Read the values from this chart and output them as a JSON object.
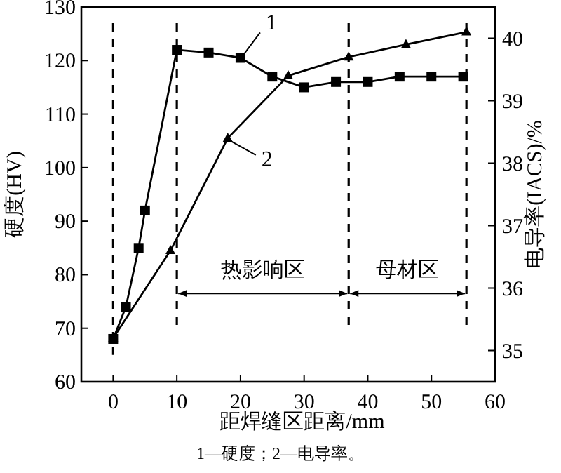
{
  "chart_data": {
    "type": "line",
    "xlabel": "距焊缝区距离/mm",
    "ylabel": "硬度(HV)",
    "y2label": "电导率(IACS)/%",
    "xlim": [
      -5,
      60
    ],
    "xticks": [
      0,
      10,
      20,
      30,
      40,
      50,
      60
    ],
    "ylim": [
      60,
      130
    ],
    "yticks": [
      60,
      70,
      80,
      90,
      100,
      110,
      120,
      130
    ],
    "y2lim": [
      34.5,
      40.5
    ],
    "y2ticks": [
      35,
      36,
      37,
      38,
      39,
      40
    ],
    "grid": false,
    "line_style": "solid",
    "series": [
      {
        "name": "1",
        "color": "#000000",
        "marker": "square",
        "x": [
          0,
          2,
          4,
          5,
          10,
          15,
          20,
          25,
          30,
          35,
          40,
          45,
          50,
          55
        ],
        "values": [
          68,
          74,
          85,
          92,
          122,
          121.5,
          120.5,
          117,
          115,
          116,
          116,
          117,
          117,
          117
        ]
      },
      {
        "name": "2",
        "color": "#000000",
        "marker": "triangle",
        "axis": "y2",
        "x": [
          0,
          9,
          18,
          27.5,
          37,
          46,
          55.5
        ],
        "values": [
          35.2,
          36.6,
          38.4,
          39.4,
          39.7,
          39.9,
          40.1
        ]
      }
    ],
    "ref_lines": [
      {
        "axis": "x",
        "value": 0,
        "line_style": "dashed"
      },
      {
        "axis": "x",
        "value": 10,
        "line_style": "dashed"
      },
      {
        "axis": "x",
        "value": 37,
        "line_style": "dashed"
      },
      {
        "axis": "x",
        "value": 55.5,
        "line_style": "dashed"
      }
    ],
    "annotations": [
      "热影响区",
      "母材区",
      "1—硬度；2—电导率。"
    ]
  }
}
